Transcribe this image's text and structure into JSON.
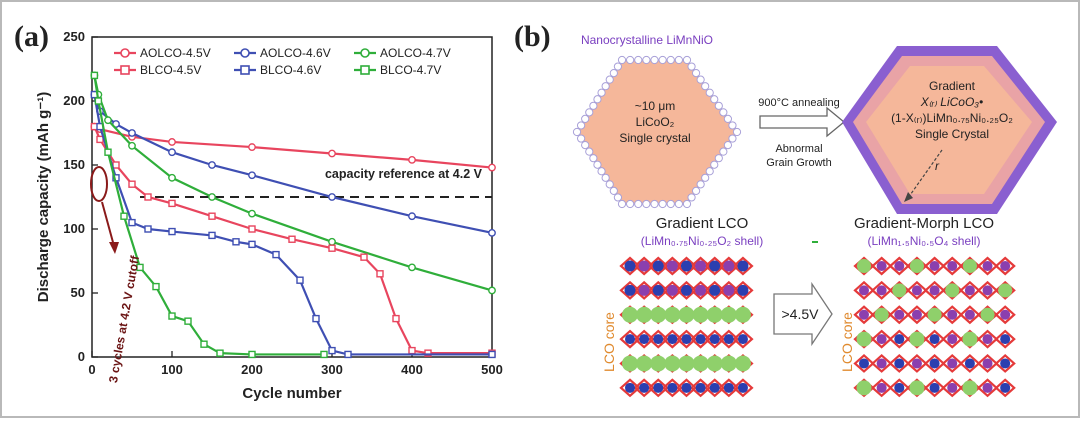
{
  "panel_a": {
    "label": "(a)",
    "legend": [
      {
        "name": "AOLCO-4.5V",
        "color": "#e8455e",
        "marker": "circle"
      },
      {
        "name": "AOLCO-4.6V",
        "color": "#3f4fb3",
        "marker": "circle"
      },
      {
        "name": "AOLCO-4.7V",
        "color": "#2fae3a",
        "marker": "circle"
      },
      {
        "name": "BLCO-4.5V",
        "color": "#e8455e",
        "marker": "square"
      },
      {
        "name": "BLCO-4.6V",
        "color": "#3f4fb3",
        "marker": "square"
      },
      {
        "name": "BLCO-4.7V",
        "color": "#2fae3a",
        "marker": "square"
      }
    ],
    "reference_label": "capacity reference at 4.2 V",
    "cutoff_label": "3 cycles at 4.2 V cutoff"
  },
  "chart_data": {
    "type": "line",
    "xlabel": "Cycle number",
    "ylabel": "Discharge capacity (mAh g⁻¹)",
    "xlim": [
      0,
      500
    ],
    "ylim": [
      0,
      250
    ],
    "xticks": [
      0,
      100,
      200,
      300,
      400,
      500
    ],
    "yticks": [
      0,
      50,
      100,
      150,
      200,
      250
    ],
    "reference_y": 125,
    "series": [
      {
        "name": "AOLCO-4.5V",
        "color": "#e8455e",
        "marker": "circle",
        "x": [
          3,
          10,
          50,
          100,
          200,
          300,
          400,
          500
        ],
        "y": [
          180,
          178,
          172,
          168,
          164,
          159,
          154,
          148
        ]
      },
      {
        "name": "AOLCO-4.6V",
        "color": "#3f4fb3",
        "marker": "circle",
        "x": [
          3,
          10,
          30,
          50,
          100,
          150,
          200,
          300,
          400,
          500
        ],
        "y": [
          205,
          192,
          182,
          175,
          160,
          150,
          142,
          125,
          110,
          97
        ]
      },
      {
        "name": "AOLCO-4.7V",
        "color": "#2fae3a",
        "marker": "circle",
        "x": [
          3,
          8,
          20,
          50,
          100,
          150,
          200,
          300,
          400,
          500
        ],
        "y": [
          220,
          205,
          185,
          165,
          140,
          125,
          112,
          90,
          70,
          52
        ]
      },
      {
        "name": "BLCO-4.5V",
        "color": "#e8455e",
        "marker": "square",
        "x": [
          3,
          10,
          30,
          50,
          70,
          100,
          150,
          200,
          250,
          300,
          340,
          360,
          380,
          400,
          420,
          500
        ],
        "y": [
          180,
          170,
          150,
          135,
          125,
          120,
          110,
          100,
          92,
          85,
          78,
          65,
          30,
          5,
          3,
          3
        ]
      },
      {
        "name": "BLCO-4.6V",
        "color": "#3f4fb3",
        "marker": "square",
        "x": [
          3,
          10,
          30,
          50,
          70,
          100,
          150,
          180,
          200,
          230,
          260,
          280,
          300,
          320,
          500
        ],
        "y": [
          205,
          180,
          140,
          105,
          100,
          98,
          95,
          90,
          88,
          80,
          60,
          30,
          5,
          2,
          2
        ]
      },
      {
        "name": "BLCO-4.7V",
        "color": "#2fae3a",
        "marker": "square",
        "x": [
          3,
          8,
          20,
          40,
          60,
          80,
          100,
          120,
          140,
          160,
          200,
          290
        ],
        "y": [
          220,
          200,
          160,
          110,
          70,
          55,
          32,
          28,
          10,
          3,
          2,
          2
        ]
      }
    ]
  },
  "panel_b": {
    "label": "(b)",
    "nano_title": "Nanocrystalline LiMnNiO",
    "core_line1": "~10 μm",
    "core_line2": "LiCoO₂",
    "core_line3": "Single crystal",
    "anneal_label": "900°C annealing",
    "growth_line1": "Abnormal",
    "growth_line2": "Grain Growth",
    "grad_line1": "Gradient",
    "grad_line2": "X₍ᵣ₎ LiCoO₃•",
    "grad_line3": "(1-X₍ᵣ₎)LiMn₀.₇₅Ni₀.₂₅O₂",
    "grad_line4": "Single Crystal",
    "r_label": "r",
    "lco_title": "Gradient LCO",
    "lco_shell": "(LiMn₀.₇₅Ni₀.₂₅O₂ shell)",
    "morph_title": "Gradient-Morph LCO",
    "morph_shell": "(LiMn₁.₅Ni₀.₅O₄ shell)",
    "core_label": "LCO core",
    "voltage_label": ">4.5V",
    "colors": {
      "shell_purple": "#8a5fd0",
      "core_peach": "#f5b79a",
      "oxygen_red": "#e53a3a",
      "cobalt_blue": "#2b3fb0",
      "lithium_green": "#8fd06b",
      "manganese_purple": "#8b3fae",
      "label_purple": "#7a3fc0",
      "core_label_orange": "#e08a2e"
    }
  }
}
